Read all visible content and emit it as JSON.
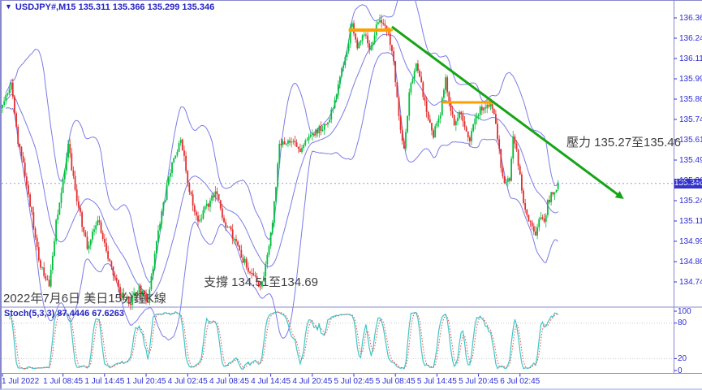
{
  "window": {
    "symbol": "USDJPY#,M15",
    "ohlc_line": "135.311 135.366 135.299 135.346",
    "dropdown_glyph": "▼"
  },
  "annotations": {
    "resistance": "壓力 135.27至135.46",
    "support": "支撐 134.51至134.69",
    "date_note": "2022年7月6日 美日15分鐘K線"
  },
  "indicator": {
    "label": "Stoch(5,3,3)",
    "main_value": "87.4446",
    "signal_value": "67.6263",
    "levels": [
      100,
      80,
      20,
      0
    ],
    "dotted_levels": [
      80,
      20
    ]
  },
  "colors": {
    "axis_text": "#2b2bd5",
    "title_text": "#2423c4",
    "candle_up": "#00c03c",
    "candle_down": "#e23030",
    "bollinger": "#7b7be8",
    "trend_green": "#16a516",
    "resistance_orange": "#ffa000",
    "stoch_main": "#3fc6c6",
    "stoch_signal": "#e05050",
    "grid_dotted": "#c9c9c9",
    "panel_border": "#8888cc",
    "price_tag_bg": "#3434c9",
    "note_text": "#3f3f3f",
    "current_price_line": "#9a9ade"
  },
  "chart_data": {
    "type": "candlestick",
    "symbol": "USDJPY#",
    "timeframe": "M15",
    "title": "USDJPY#,M15 135.311 135.366 135.299 135.346",
    "current_price": "135.346",
    "last_bar": {
      "open": 135.311,
      "high": 135.366,
      "low": 135.299,
      "close": 135.346
    },
    "bars_total": 322,
    "y_axis": {
      "ticks": [
        136.365,
        136.24,
        136.115,
        135.99,
        135.865,
        135.74,
        135.615,
        135.49,
        135.365,
        135.24,
        135.115,
        134.99,
        134.865,
        134.74
      ],
      "min_visible": 134.6,
      "max_visible": 136.42
    },
    "x_axis": {
      "ticks": [
        {
          "label": "1 Jul 2022",
          "bar": 0
        },
        {
          "label": "1 Jul 08:45",
          "bar": 35
        },
        {
          "label": "1 Jul 14:45",
          "bar": 59
        },
        {
          "label": "1 Jul 20:45",
          "bar": 83
        },
        {
          "label": "4 Jul 02:45",
          "bar": 107
        },
        {
          "label": "4 Jul 08:45",
          "bar": 131
        },
        {
          "label": "4 Jul 14:45",
          "bar": 155
        },
        {
          "label": "4 Jul 20:45",
          "bar": 179
        },
        {
          "label": "5 Jul 02:45",
          "bar": 203
        },
        {
          "label": "5 Jul 08:45",
          "bar": 227
        },
        {
          "label": "5 Jul 14:45",
          "bar": 251
        },
        {
          "label": "5 Jul 20:45",
          "bar": 275
        },
        {
          "label": "6 Jul 02:45",
          "bar": 299
        }
      ]
    },
    "price_path_anchors": [
      [
        0,
        135.82
      ],
      [
        5,
        135.95
      ],
      [
        9,
        135.6
      ],
      [
        15,
        135.3
      ],
      [
        21,
        134.86
      ],
      [
        27,
        134.72
      ],
      [
        31,
        135.1
      ],
      [
        38,
        135.58
      ],
      [
        43,
        135.25
      ],
      [
        49,
        134.95
      ],
      [
        55,
        135.12
      ],
      [
        61,
        134.9
      ],
      [
        68,
        134.66
      ],
      [
        74,
        134.62
      ],
      [
        79,
        134.7
      ],
      [
        84,
        134.62
      ],
      [
        90,
        135.05
      ],
      [
        97,
        135.42
      ],
      [
        103,
        135.62
      ],
      [
        108,
        135.3
      ],
      [
        113,
        135.12
      ],
      [
        119,
        135.22
      ],
      [
        123,
        135.3
      ],
      [
        128,
        135.1
      ],
      [
        135,
        135.0
      ],
      [
        139,
        134.88
      ],
      [
        145,
        134.76
      ],
      [
        150,
        134.72
      ],
      [
        156,
        135.1
      ],
      [
        160,
        135.58
      ],
      [
        166,
        135.62
      ],
      [
        172,
        135.55
      ],
      [
        178,
        135.65
      ],
      [
        184,
        135.68
      ],
      [
        188,
        135.72
      ],
      [
        193,
        135.9
      ],
      [
        198,
        136.12
      ],
      [
        202,
        136.34
      ],
      [
        205,
        136.18
      ],
      [
        209,
        136.28
      ],
      [
        212,
        136.15
      ],
      [
        216,
        136.3
      ],
      [
        219,
        136.34
      ],
      [
        223,
        136.25
      ],
      [
        226,
        136.1
      ],
      [
        229,
        135.75
      ],
      [
        232,
        135.55
      ],
      [
        235,
        135.9
      ],
      [
        239,
        136.08
      ],
      [
        242,
        135.95
      ],
      [
        246,
        135.72
      ],
      [
        249,
        135.65
      ],
      [
        253,
        135.78
      ],
      [
        256,
        136.0
      ],
      [
        258,
        135.85
      ],
      [
        261,
        135.7
      ],
      [
        264,
        135.78
      ],
      [
        267,
        135.7
      ],
      [
        270,
        135.62
      ],
      [
        273,
        135.72
      ],
      [
        276,
        135.8
      ],
      [
        280,
        135.84
      ],
      [
        283,
        135.82
      ],
      [
        285,
        135.72
      ],
      [
        288,
        135.45
      ],
      [
        290,
        135.35
      ],
      [
        293,
        135.38
      ],
      [
        295,
        135.65
      ],
      [
        297,
        135.55
      ],
      [
        299,
        135.4
      ],
      [
        301,
        135.25
      ],
      [
        304,
        135.12
      ],
      [
        306,
        135.06
      ],
      [
        308,
        135.04
      ],
      [
        311,
        135.15
      ],
      [
        313,
        135.1
      ],
      [
        315,
        135.22
      ],
      [
        318,
        135.3
      ],
      [
        321,
        135.346
      ]
    ],
    "overlays": {
      "bollinger": {
        "period": 20,
        "deviation": 2
      },
      "trendline": {
        "from_bar": 225,
        "from_price": 136.31,
        "to_bar": 359,
        "to_price": 135.25
      },
      "resistance_segments": [
        {
          "from_bar": 200,
          "to_bar": 226,
          "price": 136.29
        },
        {
          "from_bar": 254,
          "to_bar": 284,
          "price": 135.845
        }
      ]
    },
    "stochastic": {
      "k_period": 5,
      "d_period": 3,
      "slowing": 3,
      "scale": [
        0,
        100
      ]
    }
  }
}
